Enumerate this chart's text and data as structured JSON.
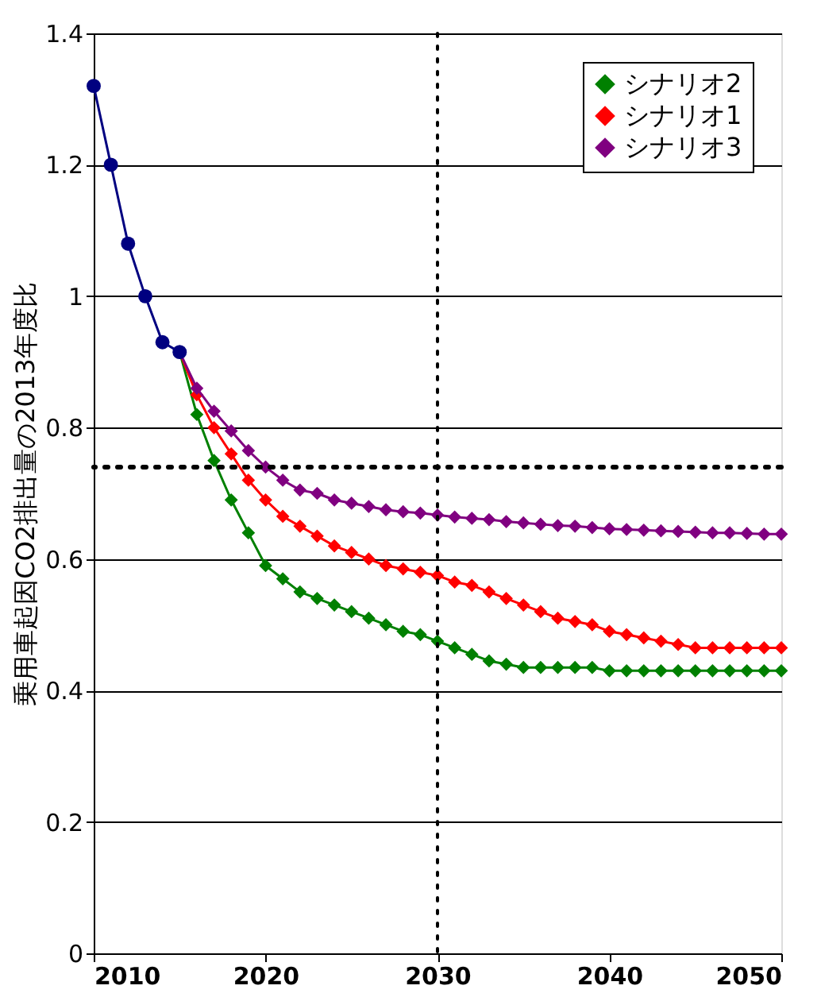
{
  "chart_data": {
    "type": "line",
    "ylabel": "乗用車起因CO2排出量の2013年度比",
    "xlim": [
      2010,
      2050
    ],
    "xticks": [
      2010,
      2020,
      2030,
      2040,
      2050
    ],
    "ylim": [
      0,
      1.4
    ],
    "yticks": [
      0,
      0.2,
      0.4,
      0.6,
      0.8,
      1,
      1.2,
      1.4
    ],
    "grid": "y",
    "legend": "top right",
    "line_style": "solid",
    "series": [
      {
        "name": "シナリオ2",
        "color": "#008000",
        "marker": "diamond",
        "x": [
          2015,
          2016,
          2017,
          2018,
          2019,
          2020,
          2021,
          2022,
          2023,
          2024,
          2025,
          2026,
          2027,
          2028,
          2029,
          2030,
          2031,
          2032,
          2033,
          2034,
          2035,
          2036,
          2037,
          2038,
          2039,
          2040,
          2041,
          2042,
          2043,
          2044,
          2045,
          2046,
          2047,
          2048,
          2049,
          2050
        ],
        "values": [
          0.915,
          0.82,
          0.75,
          0.69,
          0.64,
          0.59,
          0.57,
          0.55,
          0.54,
          0.53,
          0.52,
          0.51,
          0.5,
          0.49,
          0.485,
          0.475,
          0.465,
          0.455,
          0.445,
          0.44,
          0.435,
          0.435,
          0.435,
          0.435,
          0.435,
          0.43,
          0.43,
          0.43,
          0.43,
          0.43,
          0.43,
          0.43,
          0.43,
          0.43,
          0.43,
          0.43
        ]
      },
      {
        "name": "シナリオ1",
        "color": "#ff0000",
        "marker": "diamond",
        "x": [
          2015,
          2016,
          2017,
          2018,
          2019,
          2020,
          2021,
          2022,
          2023,
          2024,
          2025,
          2026,
          2027,
          2028,
          2029,
          2030,
          2031,
          2032,
          2033,
          2034,
          2035,
          2036,
          2037,
          2038,
          2039,
          2040,
          2041,
          2042,
          2043,
          2044,
          2045,
          2046,
          2047,
          2048,
          2049,
          2050
        ],
        "values": [
          0.915,
          0.85,
          0.8,
          0.76,
          0.72,
          0.69,
          0.665,
          0.65,
          0.635,
          0.62,
          0.61,
          0.6,
          0.59,
          0.585,
          0.58,
          0.575,
          0.565,
          0.56,
          0.55,
          0.54,
          0.53,
          0.52,
          0.51,
          0.505,
          0.5,
          0.49,
          0.485,
          0.48,
          0.475,
          0.47,
          0.465,
          0.465,
          0.465,
          0.465,
          0.465,
          0.465
        ]
      },
      {
        "name": "シナリオ3",
        "color": "#800080",
        "marker": "diamond",
        "x": [
          2015,
          2016,
          2017,
          2018,
          2019,
          2020,
          2021,
          2022,
          2023,
          2024,
          2025,
          2026,
          2027,
          2028,
          2029,
          2030,
          2031,
          2032,
          2033,
          2034,
          2035,
          2036,
          2037,
          2038,
          2039,
          2040,
          2041,
          2042,
          2043,
          2044,
          2045,
          2046,
          2047,
          2048,
          2049,
          2050
        ],
        "values": [
          0.915,
          0.86,
          0.825,
          0.795,
          0.765,
          0.74,
          0.72,
          0.705,
          0.7,
          0.69,
          0.685,
          0.68,
          0.675,
          0.672,
          0.67,
          0.667,
          0.664,
          0.662,
          0.66,
          0.657,
          0.655,
          0.653,
          0.651,
          0.65,
          0.648,
          0.646,
          0.645,
          0.644,
          0.643,
          0.642,
          0.641,
          0.64,
          0.64,
          0.639,
          0.638,
          0.638
        ]
      },
      {
        "color": "#000080",
        "marker": "circle",
        "x": [
          2010,
          2011,
          2012,
          2013,
          2014,
          2015
        ],
        "values": [
          1.32,
          1.2,
          1.08,
          1.0,
          0.93,
          0.915
        ]
      }
    ],
    "ref_lines": [
      {
        "axis": "y",
        "value": 0.74,
        "color": "#000000",
        "line_style": "dotted"
      },
      {
        "axis": "x",
        "value": 2030,
        "color": "#000000",
        "line_style": "dotted"
      }
    ]
  }
}
